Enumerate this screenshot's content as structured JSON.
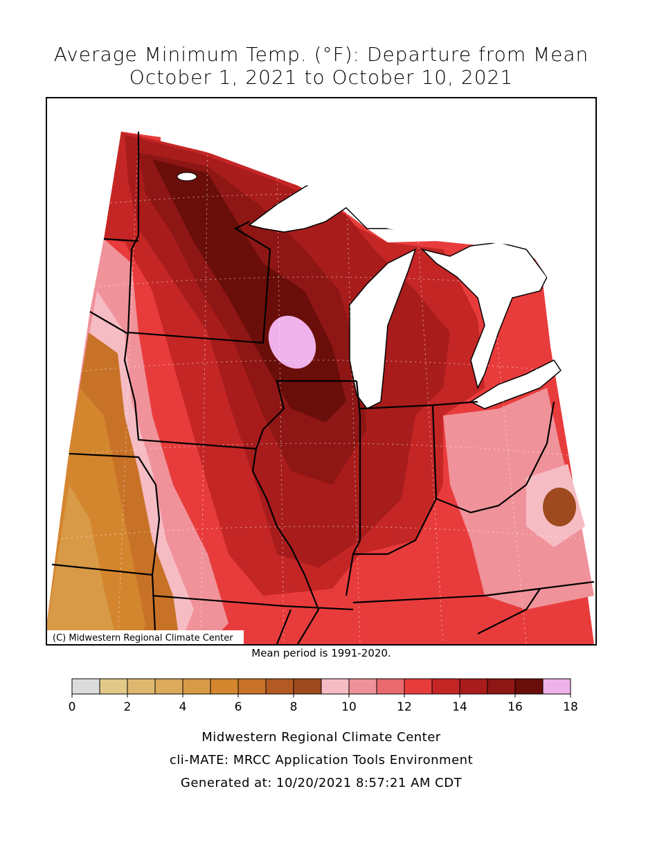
{
  "title": "Average Minimum Temp. (°F): Departure from Mean",
  "subtitle": "October 1, 2021 to October 10, 2021",
  "copyright": "(C) Midwestern Regional Climate Center",
  "note": "Mean period is 1991-2020.",
  "colorbar": {
    "bins": [
      0,
      1,
      2,
      3,
      4,
      5,
      6,
      7,
      8,
      9,
      10,
      11,
      12,
      13,
      14,
      15,
      16,
      17,
      18
    ],
    "colors": [
      "#dcdcdc",
      "#e2c98a",
      "#dfb870",
      "#dcaa5c",
      "#d89a46",
      "#d4862e",
      "#c87228",
      "#b35a24",
      "#9e4a1e",
      "#f6bcc4",
      "#f0929a",
      "#e96a6e",
      "#e83c3c",
      "#c42626",
      "#a81c1c",
      "#8e1614",
      "#6a0e0a",
      "#f0b2ea"
    ],
    "ticks": [
      0,
      2,
      4,
      6,
      8,
      10,
      12,
      14,
      16,
      18
    ]
  },
  "footer": [
    "Midwestern Regional Climate Center",
    "cli-MATE: MRCC Application Tools Environment",
    "Generated at: 10/20/2021 8:57:21 AM CDT"
  ]
}
